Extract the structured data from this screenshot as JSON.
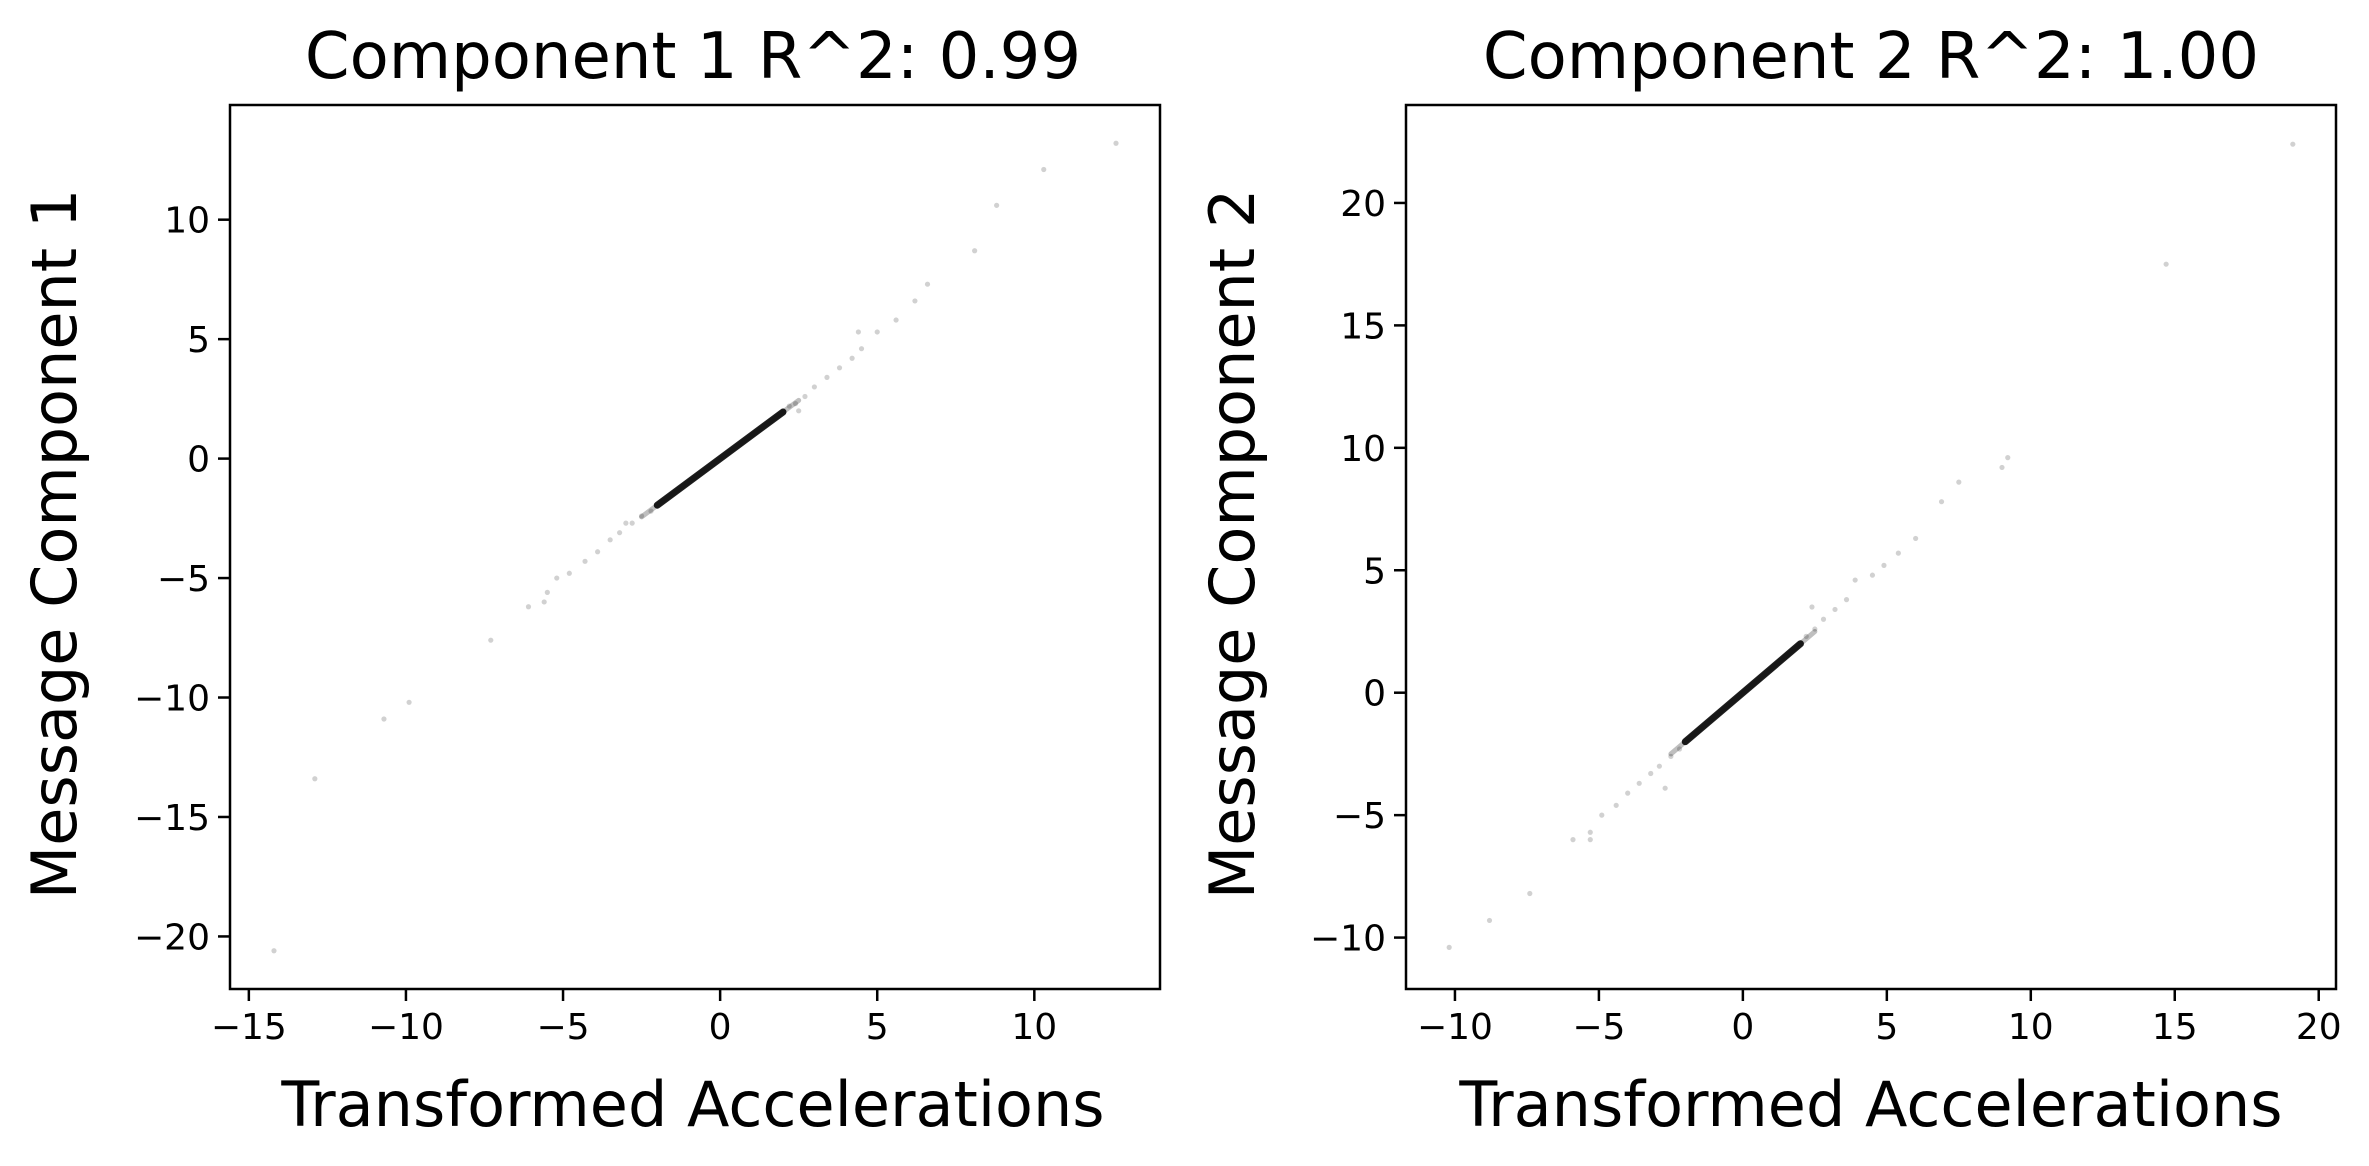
{
  "chart_data": [
    {
      "type": "scatter",
      "title": "Component 1 R^2:  0.99",
      "xlabel": "Transformed Accelerations",
      "ylabel": "Message Component 1",
      "xlim": [
        -15.6,
        14.0
      ],
      "ylim": [
        -22.2,
        14.8
      ],
      "xticks": [
        -15,
        -10,
        -5,
        0,
        5,
        10
      ],
      "xtick_labels": [
        "−15",
        "−10",
        "−5",
        "0",
        "5",
        "10"
      ],
      "yticks": [
        -20,
        -15,
        -10,
        -5,
        0,
        5,
        10
      ],
      "ytick_labels": [
        "−20",
        "−15",
        "−10",
        "−5",
        "0",
        "5",
        "10"
      ],
      "grid": false,
      "point_color": "#000000",
      "core_segment": {
        "x": [
          -2.0,
          2.0
        ],
        "y": [
          -1.95,
          1.95
        ]
      },
      "points": [
        {
          "x": 12.6,
          "y": 13.2
        },
        {
          "x": 10.3,
          "y": 12.1
        },
        {
          "x": 8.8,
          "y": 10.6
        },
        {
          "x": 8.1,
          "y": 8.7
        },
        {
          "x": 6.6,
          "y": 7.3
        },
        {
          "x": 6.2,
          "y": 6.6
        },
        {
          "x": 5.6,
          "y": 5.8
        },
        {
          "x": 5.0,
          "y": 5.3
        },
        {
          "x": 4.4,
          "y": 5.3
        },
        {
          "x": 4.5,
          "y": 4.6
        },
        {
          "x": 4.2,
          "y": 4.2
        },
        {
          "x": 3.8,
          "y": 3.8
        },
        {
          "x": 3.4,
          "y": 3.4
        },
        {
          "x": 3.0,
          "y": 3.0
        },
        {
          "x": 2.7,
          "y": 2.6
        },
        {
          "x": 2.4,
          "y": 2.3
        },
        {
          "x": 2.2,
          "y": 2.2
        },
        {
          "x": 2.5,
          "y": 2.0
        },
        {
          "x": -2.2,
          "y": -2.2
        },
        {
          "x": -2.5,
          "y": -2.4
        },
        {
          "x": -2.8,
          "y": -2.7
        },
        {
          "x": -3.2,
          "y": -3.1
        },
        {
          "x": -3.5,
          "y": -3.4
        },
        {
          "x": -3.0,
          "y": -2.7
        },
        {
          "x": -3.9,
          "y": -3.9
        },
        {
          "x": -4.3,
          "y": -4.3
        },
        {
          "x": -4.8,
          "y": -4.8
        },
        {
          "x": -5.2,
          "y": -5.0
        },
        {
          "x": -5.5,
          "y": -5.6
        },
        {
          "x": -6.1,
          "y": -6.2
        },
        {
          "x": -5.6,
          "y": -6.0
        },
        {
          "x": -7.3,
          "y": -7.6
        },
        {
          "x": -9.9,
          "y": -10.2
        },
        {
          "x": -10.7,
          "y": -10.9
        },
        {
          "x": -12.9,
          "y": -13.4
        },
        {
          "x": -14.2,
          "y": -20.6
        }
      ]
    },
    {
      "type": "scatter",
      "title": "Component 2 R^2:  1.00",
      "xlabel": "Transformed Accelerations",
      "ylabel": "Message Component 2",
      "xlim": [
        -11.7,
        20.6
      ],
      "ylim": [
        -12.1,
        24.0
      ],
      "xticks": [
        -10,
        -5,
        0,
        5,
        10,
        15,
        20
      ],
      "xtick_labels": [
        "−10",
        "−5",
        "0",
        "5",
        "10",
        "15",
        "20"
      ],
      "yticks": [
        -10,
        -5,
        0,
        5,
        10,
        15,
        20
      ],
      "ytick_labels": [
        "−10",
        "−5",
        "0",
        "5",
        "10",
        "15",
        "20"
      ],
      "grid": false,
      "point_color": "#000000",
      "core_segment": {
        "x": [
          -2.0,
          2.0
        ],
        "y": [
          -2.0,
          2.0
        ]
      },
      "points": [
        {
          "x": 19.1,
          "y": 22.4
        },
        {
          "x": 14.7,
          "y": 17.5
        },
        {
          "x": 9.2,
          "y": 9.6
        },
        {
          "x": 9.0,
          "y": 9.2
        },
        {
          "x": 7.5,
          "y": 8.6
        },
        {
          "x": 6.9,
          "y": 7.8
        },
        {
          "x": 6.0,
          "y": 6.3
        },
        {
          "x": 5.4,
          "y": 5.7
        },
        {
          "x": 4.9,
          "y": 5.2
        },
        {
          "x": 4.5,
          "y": 4.8
        },
        {
          "x": 3.9,
          "y": 4.6
        },
        {
          "x": 3.6,
          "y": 3.8
        },
        {
          "x": 3.2,
          "y": 3.4
        },
        {
          "x": 2.8,
          "y": 3.0
        },
        {
          "x": 2.5,
          "y": 2.6
        },
        {
          "x": 2.4,
          "y": 3.5
        },
        {
          "x": 2.2,
          "y": 2.3
        },
        {
          "x": -2.2,
          "y": -2.3
        },
        {
          "x": -2.5,
          "y": -2.6
        },
        {
          "x": -2.9,
          "y": -3.0
        },
        {
          "x": -3.2,
          "y": -3.3
        },
        {
          "x": -3.6,
          "y": -3.7
        },
        {
          "x": -4.0,
          "y": -4.1
        },
        {
          "x": -2.7,
          "y": -3.9
        },
        {
          "x": -4.4,
          "y": -4.6
        },
        {
          "x": -4.9,
          "y": -5.0
        },
        {
          "x": -5.3,
          "y": -5.7
        },
        {
          "x": -5.9,
          "y": -6.0
        },
        {
          "x": -5.3,
          "y": -6.0
        },
        {
          "x": -7.4,
          "y": -8.2
        },
        {
          "x": -8.8,
          "y": -9.3
        },
        {
          "x": -10.2,
          "y": -10.4
        }
      ]
    }
  ]
}
